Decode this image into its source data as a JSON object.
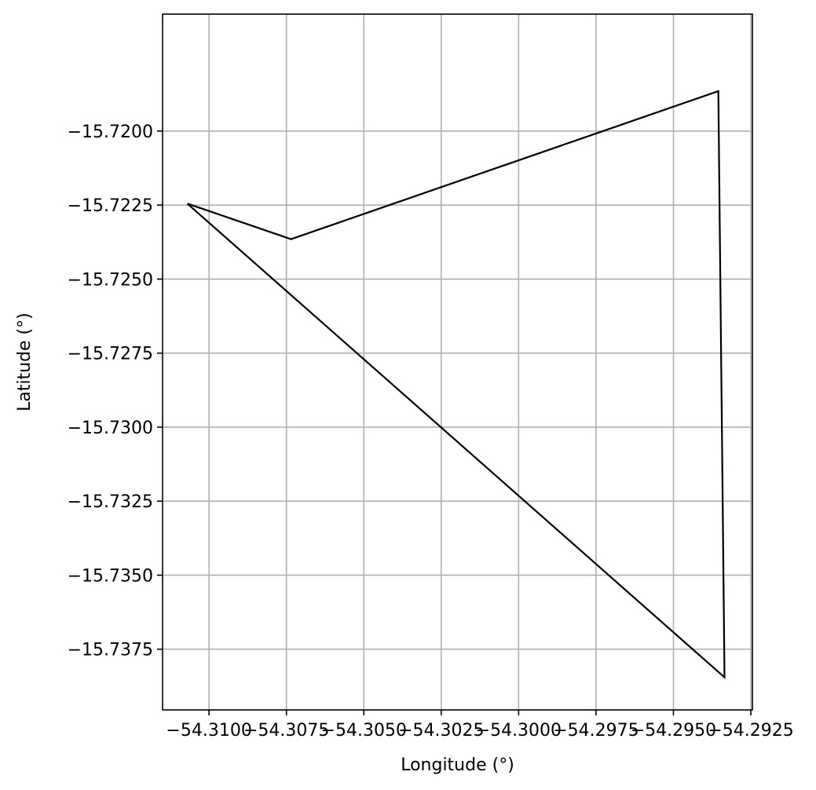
{
  "chart_data": {
    "type": "line",
    "title": "",
    "xlabel": "Longitude (°)",
    "ylabel": "Latitude (°)",
    "xlim": [
      -54.3115,
      -54.29245
    ],
    "ylim": [
      -15.73955,
      -15.71605
    ],
    "grid": true,
    "legend": "none",
    "x_ticks": [
      {
        "value": -54.31,
        "label": "−54.3100"
      },
      {
        "value": -54.3075,
        "label": "−54.3075"
      },
      {
        "value": -54.305,
        "label": "−54.3050"
      },
      {
        "value": -54.3025,
        "label": "−54.3025"
      },
      {
        "value": -54.3,
        "label": "−54.3000"
      },
      {
        "value": -54.2975,
        "label": "−54.2975"
      },
      {
        "value": -54.295,
        "label": "−54.2950"
      },
      {
        "value": -54.2925,
        "label": "−54.2925"
      }
    ],
    "y_ticks": [
      {
        "value": -15.72,
        "label": "−15.7200"
      },
      {
        "value": -15.7225,
        "label": "−15.7225"
      },
      {
        "value": -15.725,
        "label": "−15.7250"
      },
      {
        "value": -15.7275,
        "label": "−15.7275"
      },
      {
        "value": -15.73,
        "label": "−15.7300"
      },
      {
        "value": -15.7325,
        "label": "−15.7325"
      },
      {
        "value": -15.735,
        "label": "−15.7350"
      },
      {
        "value": -15.7375,
        "label": "−15.7375"
      }
    ],
    "series": [
      {
        "color": "#000000",
        "x": [
          -54.3107,
          -54.30735,
          -54.29355,
          -54.29335,
          -54.3107
        ],
        "y": [
          -15.72245,
          -15.72365,
          -15.71865,
          -15.73845,
          -15.72245
        ]
      }
    ]
  },
  "colors": {
    "grid": "#b0b0b0",
    "frame": "#000000",
    "line": "#000000"
  }
}
